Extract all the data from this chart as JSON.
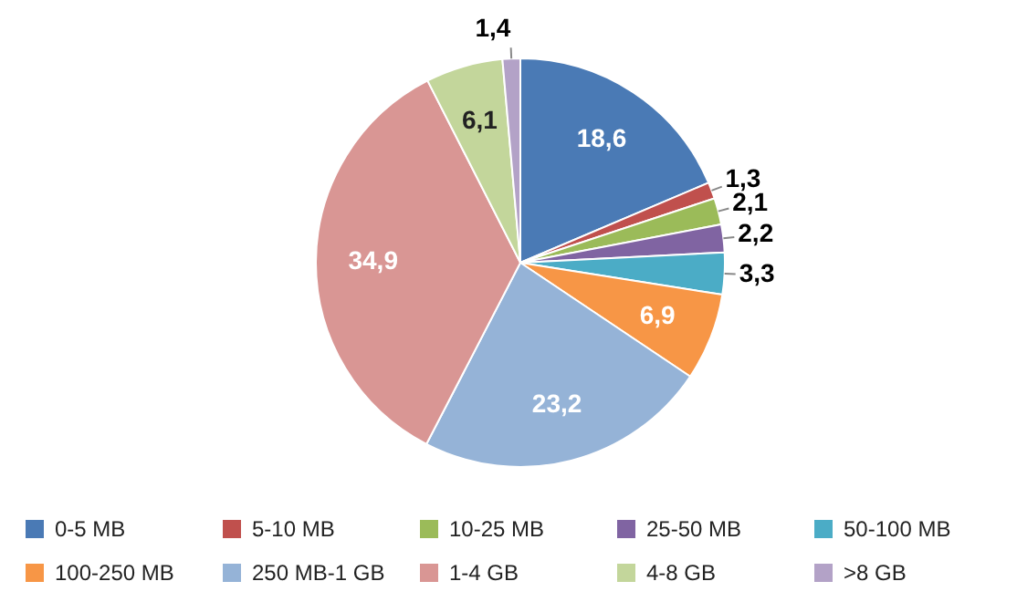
{
  "chart_data": {
    "type": "pie",
    "categories": [
      "0-5 MB",
      "5-10 MB",
      "10-25 MB",
      "25-50 MB",
      "50-100 MB",
      "100-250 MB",
      "250 MB-1 GB",
      "1-4 GB",
      "4-8 GB",
      ">8 GB"
    ],
    "values": [
      18.6,
      1.3,
      2.1,
      2.2,
      3.3,
      6.9,
      23.2,
      34.9,
      6.1,
      1.4
    ],
    "value_labels": [
      "18,6",
      "1,3",
      "2,1",
      "2,2",
      "3,3",
      "6,9",
      "23,2",
      "34,9",
      "6,1",
      "1,4"
    ],
    "colors": [
      "#4a7ab5",
      "#c0504d",
      "#9bbb59",
      "#8064a2",
      "#4bacc6",
      "#f79646",
      "#95b3d7",
      "#d99694",
      "#c3d69b",
      "#b3a2c7"
    ],
    "legend": "bottom"
  }
}
